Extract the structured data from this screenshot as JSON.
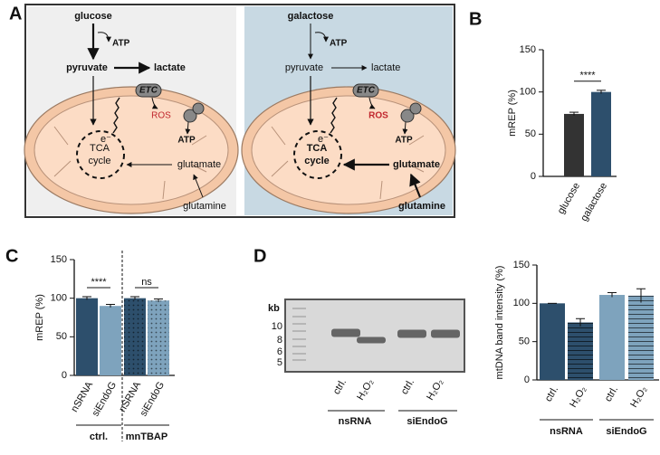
{
  "panel_labels": [
    "A",
    "B",
    "C",
    "D"
  ],
  "diagrams": [
    {
      "sugar": "glucose",
      "atp_1": "ATP",
      "pyruvate": "pyruvate",
      "lactate": "lactate",
      "etc": "ETC",
      "electron": "e⁻",
      "ros": "ROS",
      "atp_2": "ATP",
      "tca_1": "TCA",
      "tca_2": "cycle",
      "glutamate": "glutamate",
      "glutamine": "glutamine"
    },
    {
      "sugar": "galactose",
      "atp_1": "ATP",
      "pyruvate": "pyruvate",
      "lactate": "lactate",
      "etc": "ETC",
      "electron": "e⁻",
      "ros": "ROS",
      "atp_2": "ATP",
      "tca_1": "TCA",
      "tca_2": "cycle",
      "glutamate": "glutamate",
      "glutamine": "glutamine"
    }
  ],
  "gel": {
    "unit": "kb",
    "markers": [
      10,
      8,
      6,
      5
    ],
    "lanes": [
      "ctrl.",
      "H₂O₂",
      "ctrl.",
      "H₂O₂"
    ],
    "groups": [
      "nsRNA",
      "siEndoG"
    ]
  },
  "chart_data": [
    {
      "type": "bar",
      "ylabel": "mREP (%)",
      "categories": [
        "glucose",
        "galactose"
      ],
      "values": [
        74,
        100
      ],
      "errors": [
        2,
        2
      ],
      "colors": [
        "#333333",
        "#2d4f6c"
      ],
      "patterns": [
        "solid",
        "solid"
      ],
      "ylim": [
        0,
        150
      ],
      "yticks": [
        0,
        50,
        100,
        150
      ],
      "annotations": [
        "****"
      ]
    },
    {
      "type": "bar",
      "ylabel": "mREP (%)",
      "categories": [
        "nSRNA",
        "siEndoG",
        "nSRNA",
        "siEndoG"
      ],
      "values": [
        100,
        90,
        100,
        97
      ],
      "errors": [
        2,
        2,
        2,
        2
      ],
      "colors": [
        "#2d4f6c",
        "#7ea3bd",
        "#2d4f6c",
        "#7ea3bd"
      ],
      "patterns": [
        "solid",
        "solid",
        "dots",
        "dots"
      ],
      "ylim": [
        0,
        150
      ],
      "yticks": [
        0,
        50,
        100,
        150
      ],
      "annotations": [
        "****",
        "ns"
      ],
      "groups": [
        "ctrl.",
        "mnTBAP"
      ],
      "divider": true
    },
    {
      "type": "bar",
      "ylabel": "mtDNA band intensity (%)",
      "categories": [
        "ctrl.",
        "H₂O₂",
        "ctrl.",
        "H₂O₂"
      ],
      "values": [
        100,
        75,
        111,
        110
      ],
      "errors": [
        0,
        5,
        3,
        9
      ],
      "colors": [
        "#2d4f6c",
        "#2d4f6c",
        "#7ea3bd",
        "#7ea3bd"
      ],
      "patterns": [
        "solid",
        "stripes",
        "solid",
        "stripes"
      ],
      "ylim": [
        0,
        150
      ],
      "yticks": [
        0,
        50,
        100,
        150
      ],
      "groups": [
        "nsRNA",
        "siEndoG"
      ]
    }
  ]
}
